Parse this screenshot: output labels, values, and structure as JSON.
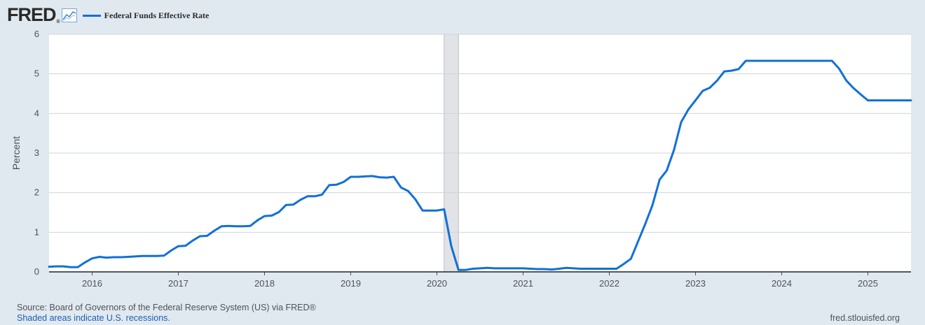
{
  "header": {
    "logo": "FRED",
    "logo_mark": "®",
    "logo_icon": "line-chart-icon"
  },
  "footer": {
    "source": "Source: Board of Governors of the Federal Reserve System (US) via FRED®",
    "recession_note": "Shaded areas indicate U.S. recessions.",
    "site": "fred.stlouisfed.org"
  },
  "colors": {
    "series": "#1170d8",
    "background": "#e1e9f0",
    "plot_background": "#ffffff",
    "recession": "#e1e3e6",
    "grid": "#cfd4d8"
  },
  "chart_data": {
    "type": "line",
    "ylabel": "Percent",
    "ylim": [
      0,
      6
    ],
    "yticks": [
      0,
      1,
      2,
      3,
      4,
      5,
      6
    ],
    "xlim": [
      "2015-07",
      "2025-07"
    ],
    "xticks": [
      "2016",
      "2017",
      "2018",
      "2019",
      "2020",
      "2021",
      "2022",
      "2023",
      "2024",
      "2025"
    ],
    "grid": true,
    "legend_placement": "top-left",
    "recessions": [
      {
        "start": "2020-02",
        "end": "2020-04"
      }
    ],
    "series": [
      {
        "name": "Federal Funds Effective Rate",
        "x": [
          "2015-07",
          "2015-08",
          "2015-09",
          "2015-10",
          "2015-11",
          "2015-12",
          "2016-01",
          "2016-02",
          "2016-03",
          "2016-04",
          "2016-05",
          "2016-06",
          "2016-07",
          "2016-08",
          "2016-09",
          "2016-10",
          "2016-11",
          "2016-12",
          "2017-01",
          "2017-02",
          "2017-03",
          "2017-04",
          "2017-05",
          "2017-06",
          "2017-07",
          "2017-08",
          "2017-09",
          "2017-10",
          "2017-11",
          "2017-12",
          "2018-01",
          "2018-02",
          "2018-03",
          "2018-04",
          "2018-05",
          "2018-06",
          "2018-07",
          "2018-08",
          "2018-09",
          "2018-10",
          "2018-11",
          "2018-12",
          "2019-01",
          "2019-02",
          "2019-03",
          "2019-04",
          "2019-05",
          "2019-06",
          "2019-07",
          "2019-08",
          "2019-09",
          "2019-10",
          "2019-11",
          "2019-12",
          "2020-01",
          "2020-02",
          "2020-03",
          "2020-04",
          "2020-05",
          "2020-06",
          "2020-07",
          "2020-08",
          "2020-09",
          "2020-10",
          "2020-11",
          "2020-12",
          "2021-01",
          "2021-02",
          "2021-03",
          "2021-04",
          "2021-05",
          "2021-06",
          "2021-07",
          "2021-08",
          "2021-09",
          "2021-10",
          "2021-11",
          "2021-12",
          "2022-01",
          "2022-02",
          "2022-03",
          "2022-04",
          "2022-05",
          "2022-06",
          "2022-07",
          "2022-08",
          "2022-09",
          "2022-10",
          "2022-11",
          "2022-12",
          "2023-01",
          "2023-02",
          "2023-03",
          "2023-04",
          "2023-05",
          "2023-06",
          "2023-07",
          "2023-08",
          "2023-09",
          "2023-10",
          "2023-11",
          "2023-12",
          "2024-01",
          "2024-02",
          "2024-03",
          "2024-04",
          "2024-05",
          "2024-06",
          "2024-07",
          "2024-08",
          "2024-09",
          "2024-10",
          "2024-11",
          "2024-12",
          "2025-01",
          "2025-02",
          "2025-03",
          "2025-04",
          "2025-05",
          "2025-06",
          "2025-07"
        ],
        "y": [
          0.13,
          0.14,
          0.14,
          0.12,
          0.12,
          0.24,
          0.34,
          0.38,
          0.36,
          0.37,
          0.37,
          0.38,
          0.39,
          0.4,
          0.4,
          0.4,
          0.41,
          0.54,
          0.65,
          0.66,
          0.79,
          0.9,
          0.91,
          1.04,
          1.15,
          1.16,
          1.15,
          1.15,
          1.16,
          1.3,
          1.41,
          1.42,
          1.51,
          1.69,
          1.7,
          1.82,
          1.91,
          1.91,
          1.95,
          2.19,
          2.2,
          2.27,
          2.4,
          2.4,
          2.41,
          2.42,
          2.39,
          2.38,
          2.4,
          2.13,
          2.04,
          1.83,
          1.55,
          1.55,
          1.55,
          1.58,
          0.65,
          0.05,
          0.05,
          0.08,
          0.09,
          0.1,
          0.09,
          0.09,
          0.09,
          0.09,
          0.09,
          0.08,
          0.07,
          0.07,
          0.06,
          0.08,
          0.1,
          0.09,
          0.08,
          0.08,
          0.08,
          0.08,
          0.08,
          0.08,
          0.2,
          0.33,
          0.77,
          1.21,
          1.68,
          2.33,
          2.56,
          3.08,
          3.78,
          4.1,
          4.33,
          4.57,
          4.65,
          4.83,
          5.06,
          5.08,
          5.12,
          5.33,
          5.33,
          5.33,
          5.33,
          5.33,
          5.33,
          5.33,
          5.33,
          5.33,
          5.33,
          5.33,
          5.33,
          5.33,
          5.13,
          4.83,
          4.64,
          4.48,
          4.33,
          4.33,
          4.33,
          4.33,
          4.33,
          4.33,
          4.33
        ]
      }
    ]
  }
}
